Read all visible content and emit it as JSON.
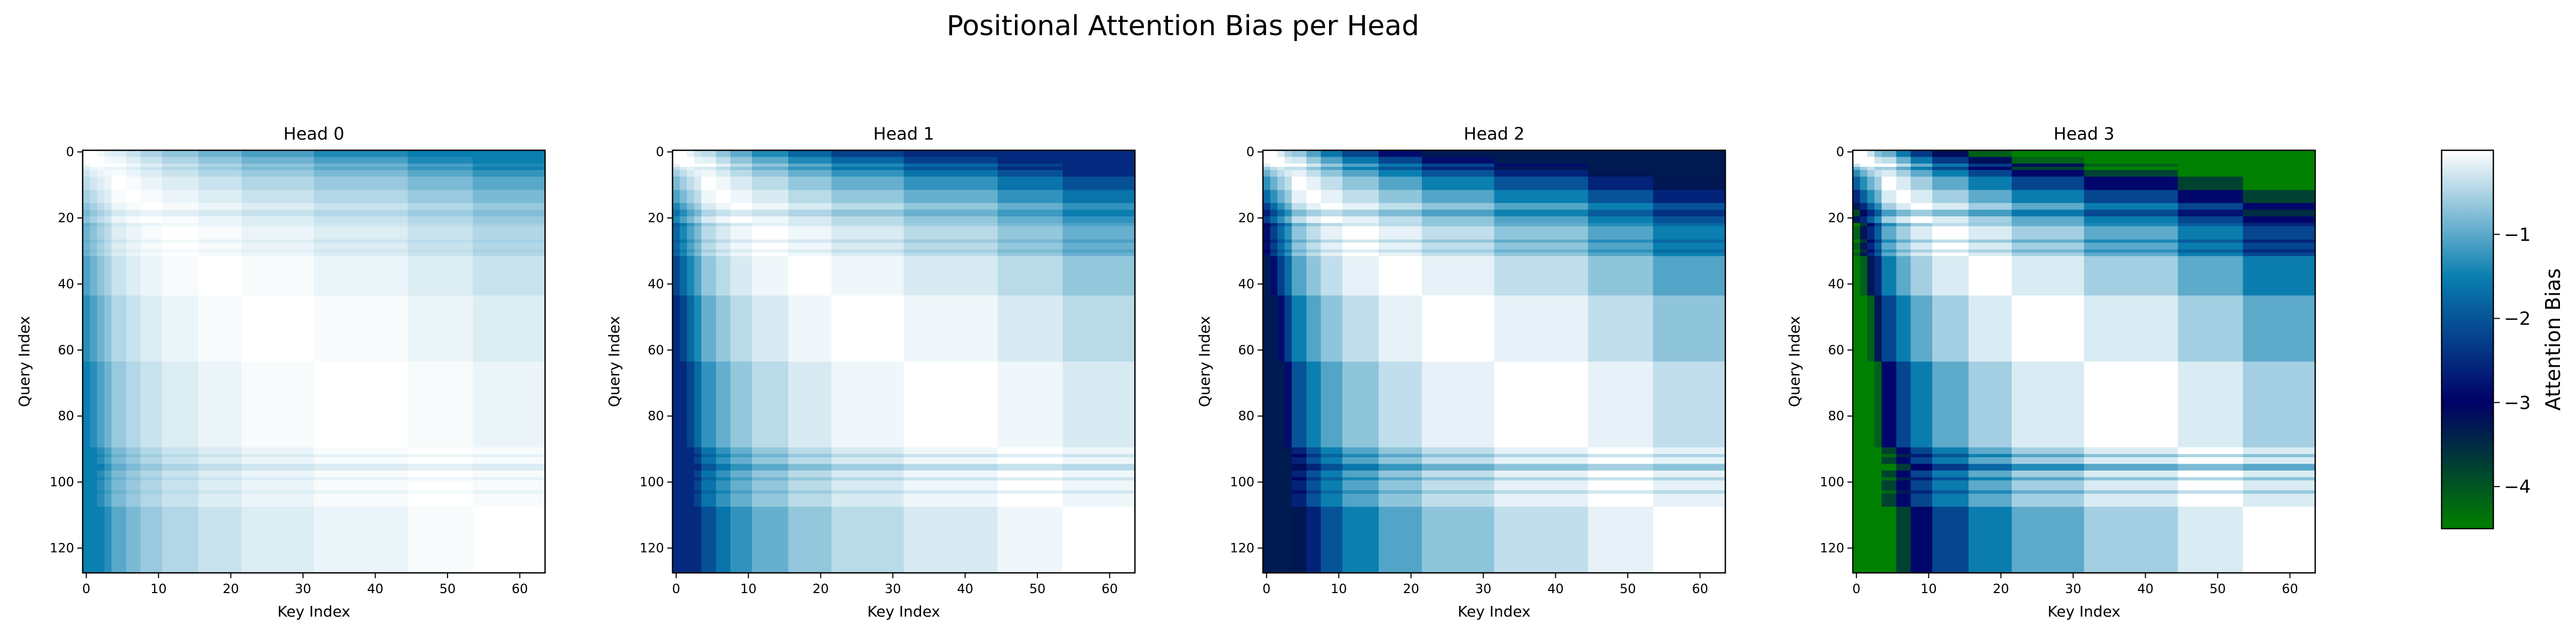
{
  "figure": {
    "title": "Positional Attention Bias per Head"
  },
  "chart_data": {
    "type": "heatmap",
    "colormap": {
      "name": "ocean_r",
      "stops": [
        "#ffffff",
        "#0a7fb0",
        "#000066",
        "#008000"
      ]
    },
    "grid": false,
    "rows": 128,
    "cols": 64,
    "xlabel": "Key Index",
    "ylabel": "Query Index",
    "xticks": [
      0,
      10,
      20,
      30,
      40,
      50,
      60
    ],
    "yticks": [
      0,
      20,
      40,
      60,
      80,
      100,
      120
    ],
    "xlim": [
      -0.5,
      63.5
    ],
    "ylim": [
      127.5,
      -0.5
    ],
    "colorbar": {
      "label": "Attention Bias",
      "range": [
        -4.5,
        0
      ],
      "ticks": [
        -1,
        -2,
        -3,
        -4
      ],
      "tick_labels": [
        "−1",
        "−2",
        "−3",
        "−4"
      ]
    },
    "key_bucket_edges": [
      0,
      1,
      2,
      3,
      4,
      6,
      8,
      11,
      16,
      22,
      32,
      45,
      54,
      64
    ],
    "query_bands": [
      {
        "start": 0,
        "end": 5,
        "bias": 0.6
      },
      {
        "start": 18,
        "end": 20,
        "bias": -0.6
      },
      {
        "start": 22,
        "end": 23,
        "bias": -0.4
      },
      {
        "start": 27,
        "end": 28,
        "bias": -0.4
      },
      {
        "start": 30,
        "end": 31,
        "bias": -0.3
      },
      {
        "start": 92,
        "end": 93,
        "bias": -0.5
      },
      {
        "start": 95,
        "end": 97,
        "bias": -0.8
      },
      {
        "start": 99,
        "end": 100,
        "bias": -0.5
      },
      {
        "start": 103,
        "end": 104,
        "bias": -0.4
      }
    ],
    "heads": [
      {
        "title": "Head 0",
        "slope": 0.0125,
        "min": -1.5
      },
      {
        "title": "Head 1",
        "slope": 0.025,
        "min": -2.5
      },
      {
        "title": "Head 2",
        "slope": 0.04,
        "min": -3.3
      },
      {
        "title": "Head 3",
        "slope": 0.058,
        "min": -4.5
      }
    ]
  }
}
